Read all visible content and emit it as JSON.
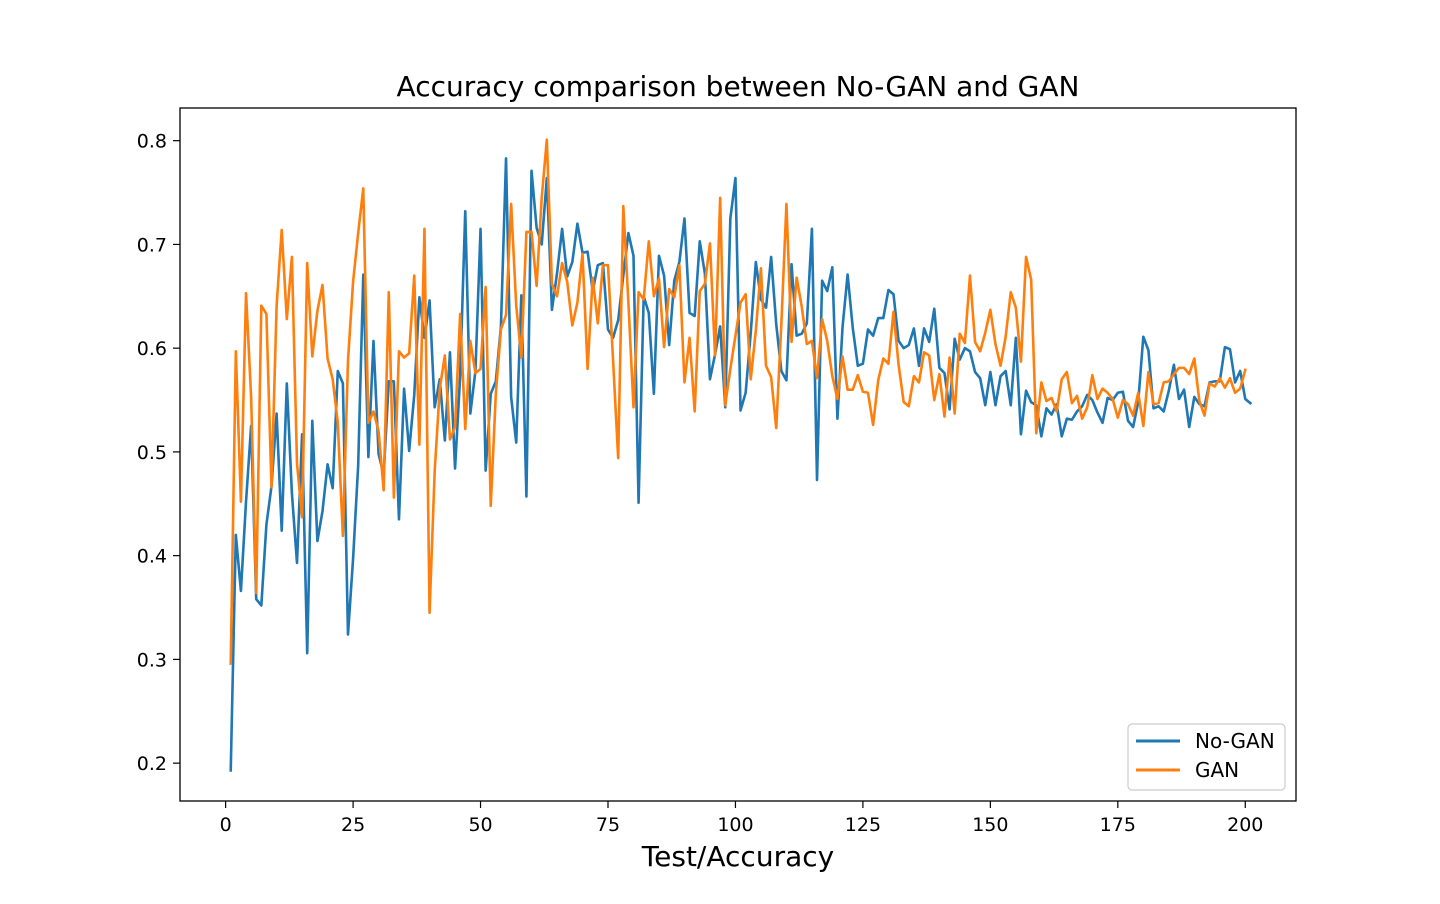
{
  "chart_data": {
    "type": "line",
    "title": "Accuracy comparison between No-GAN and GAN",
    "xlabel": "Test/Accuracy",
    "ylabel": "",
    "xlim": [
      -8.95,
      209.95
    ],
    "ylim": [
      0.1635,
      0.8315
    ],
    "xticks": [
      0,
      25,
      50,
      75,
      100,
      125,
      150,
      175,
      200
    ],
    "yticks": [
      0.2,
      0.3,
      0.4,
      0.5,
      0.6,
      0.7,
      0.8
    ],
    "xtick_labels": [
      "0",
      "25",
      "50",
      "75",
      "100",
      "125",
      "150",
      "175",
      "200"
    ],
    "ytick_labels": [
      "0.2",
      "0.3",
      "0.4",
      "0.5",
      "0.6",
      "0.7",
      "0.8"
    ],
    "grid": false,
    "legend_position": "lower-right",
    "x_start": 1,
    "series": [
      {
        "name": "No-GAN",
        "color": "#1f77b4",
        "values": [
          0.193,
          0.42,
          0.366,
          0.452,
          0.525,
          0.358,
          0.352,
          0.43,
          0.467,
          0.537,
          0.424,
          0.566,
          0.46,
          0.393,
          0.517,
          0.306,
          0.53,
          0.414,
          0.443,
          0.488,
          0.465,
          0.578,
          0.566,
          0.324,
          0.397,
          0.487,
          0.671,
          0.495,
          0.607,
          0.498,
          0.478,
          0.568,
          0.568,
          0.435,
          0.561,
          0.501,
          0.555,
          0.649,
          0.61,
          0.646,
          0.543,
          0.57,
          0.511,
          0.596,
          0.484,
          0.573,
          0.732,
          0.537,
          0.578,
          0.715,
          0.482,
          0.556,
          0.568,
          0.621,
          0.783,
          0.553,
          0.509,
          0.651,
          0.457,
          0.771,
          0.716,
          0.7,
          0.764,
          0.637,
          0.672,
          0.715,
          0.669,
          0.683,
          0.72,
          0.692,
          0.693,
          0.655,
          0.68,
          0.682,
          0.618,
          0.61,
          0.627,
          0.67,
          0.711,
          0.689,
          0.451,
          0.65,
          0.634,
          0.556,
          0.689,
          0.67,
          0.603,
          0.665,
          0.683,
          0.725,
          0.634,
          0.631,
          0.703,
          0.672,
          0.57,
          0.594,
          0.621,
          0.543,
          0.725,
          0.764,
          0.54,
          0.557,
          0.615,
          0.683,
          0.647,
          0.639,
          0.688,
          0.623,
          0.578,
          0.569,
          0.681,
          0.612,
          0.614,
          0.624,
          0.715,
          0.473,
          0.665,
          0.655,
          0.678,
          0.532,
          0.62,
          0.671,
          0.62,
          0.583,
          0.585,
          0.618,
          0.612,
          0.629,
          0.629,
          0.656,
          0.652,
          0.607,
          0.6,
          0.603,
          0.619,
          0.583,
          0.619,
          0.606,
          0.638,
          0.581,
          0.576,
          0.541,
          0.609,
          0.589,
          0.6,
          0.597,
          0.577,
          0.571,
          0.545,
          0.577,
          0.545,
          0.573,
          0.578,
          0.545,
          0.61,
          0.517,
          0.559,
          0.548,
          0.545,
          0.515,
          0.542,
          0.536,
          0.546,
          0.515,
          0.532,
          0.531,
          0.539,
          0.544,
          0.555,
          0.55,
          0.538,
          0.528,
          0.552,
          0.55,
          0.557,
          0.558,
          0.53,
          0.524,
          0.548,
          0.611,
          0.598,
          0.542,
          0.544,
          0.539,
          0.559,
          0.584,
          0.551,
          0.56,
          0.524,
          0.553,
          0.546,
          0.544,
          0.567,
          0.568,
          0.568,
          0.601,
          0.599,
          0.567,
          0.578,
          0.551,
          0.547
        ]
      },
      {
        "name": "GAN",
        "color": "#ff7f0e",
        "values": [
          0.296,
          0.597,
          0.452,
          0.653,
          0.553,
          0.364,
          0.641,
          0.633,
          0.466,
          0.641,
          0.714,
          0.628,
          0.688,
          0.489,
          0.437,
          0.682,
          0.592,
          0.636,
          0.661,
          0.59,
          0.57,
          0.528,
          0.419,
          0.588,
          0.664,
          0.711,
          0.754,
          0.528,
          0.539,
          0.52,
          0.463,
          0.654,
          0.456,
          0.597,
          0.591,
          0.595,
          0.67,
          0.507,
          0.715,
          0.345,
          0.481,
          0.561,
          0.593,
          0.512,
          0.524,
          0.633,
          0.522,
          0.607,
          0.576,
          0.58,
          0.659,
          0.448,
          0.556,
          0.618,
          0.632,
          0.739,
          0.641,
          0.591,
          0.712,
          0.712,
          0.66,
          0.745,
          0.801,
          0.662,
          0.65,
          0.682,
          0.664,
          0.622,
          0.644,
          0.691,
          0.58,
          0.668,
          0.624,
          0.68,
          0.68,
          0.588,
          0.494,
          0.737,
          0.644,
          0.543,
          0.654,
          0.647,
          0.703,
          0.65,
          0.667,
          0.601,
          0.657,
          0.649,
          0.68,
          0.567,
          0.61,
          0.539,
          0.655,
          0.662,
          0.701,
          0.593,
          0.745,
          0.545,
          0.58,
          0.612,
          0.644,
          0.652,
          0.57,
          0.617,
          0.677,
          0.583,
          0.572,
          0.523,
          0.623,
          0.739,
          0.606,
          0.668,
          0.64,
          0.604,
          0.607,
          0.571,
          0.628,
          0.607,
          0.573,
          0.551,
          0.592,
          0.56,
          0.56,
          0.574,
          0.558,
          0.557,
          0.526,
          0.569,
          0.59,
          0.585,
          0.635,
          0.584,
          0.548,
          0.544,
          0.573,
          0.567,
          0.596,
          0.593,
          0.55,
          0.575,
          0.534,
          0.591,
          0.537,
          0.614,
          0.605,
          0.67,
          0.606,
          0.597,
          0.615,
          0.637,
          0.604,
          0.583,
          0.611,
          0.654,
          0.639,
          0.587,
          0.688,
          0.666,
          0.518,
          0.567,
          0.549,
          0.552,
          0.539,
          0.57,
          0.577,
          0.547,
          0.554,
          0.532,
          0.543,
          0.574,
          0.551,
          0.561,
          0.557,
          0.551,
          0.533,
          0.55,
          0.546,
          0.535,
          0.557,
          0.525,
          0.577,
          0.546,
          0.547,
          0.567,
          0.568,
          0.575,
          0.581,
          0.581,
          0.575,
          0.59,
          0.549,
          0.535,
          0.566,
          0.563,
          0.571,
          0.562,
          0.571,
          0.557,
          0.561,
          0.579
        ]
      }
    ]
  }
}
